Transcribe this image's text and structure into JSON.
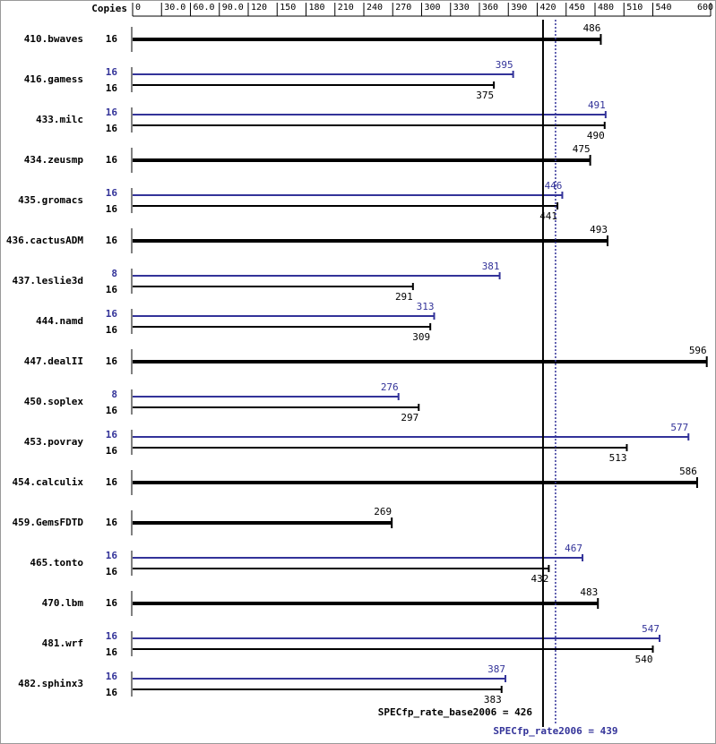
{
  "chart_data": {
    "type": "bar",
    "copies_header": "Copies",
    "categories": [
      "410.bwaves",
      "416.gamess",
      "433.milc",
      "434.zeusmp",
      "435.gromacs",
      "436.cactusADM",
      "437.leslie3d",
      "444.namd",
      "447.dealII",
      "450.soplex",
      "453.povray",
      "454.calculix",
      "459.GemsFDTD",
      "465.tonto",
      "470.lbm",
      "481.wrf",
      "482.sphinx3"
    ],
    "peak_copies": [
      null,
      16,
      16,
      null,
      16,
      null,
      8,
      16,
      null,
      8,
      16,
      null,
      null,
      16,
      null,
      16,
      16
    ],
    "peak_values": [
      null,
      395,
      491,
      null,
      446,
      null,
      381,
      313,
      null,
      276,
      577,
      null,
      null,
      467,
      null,
      547,
      387
    ],
    "base_copies": [
      16,
      16,
      16,
      16,
      16,
      16,
      16,
      16,
      16,
      16,
      16,
      16,
      16,
      16,
      16,
      16,
      16
    ],
    "base_values": [
      486,
      375,
      490,
      475,
      441,
      493,
      291,
      309,
      596,
      297,
      513,
      586,
      269,
      432,
      483,
      540,
      383
    ],
    "peak_color": "#333399",
    "base_color": "#000000",
    "xlim": [
      0,
      600
    ],
    "xticks": [
      0,
      {
        "value": 30,
        "label": "30.0"
      },
      {
        "value": 60,
        "label": "60.0"
      },
      {
        "value": 90,
        "label": "90.0"
      },
      120,
      150,
      180,
      210,
      240,
      270,
      300,
      330,
      360,
      390,
      420,
      450,
      480,
      510,
      540,
      600
    ],
    "base_score": 426,
    "base_score_label": "SPECfp_rate_base2006 = 426",
    "peak_score": 439,
    "peak_score_label": "SPECfp_rate2006 = 439"
  }
}
